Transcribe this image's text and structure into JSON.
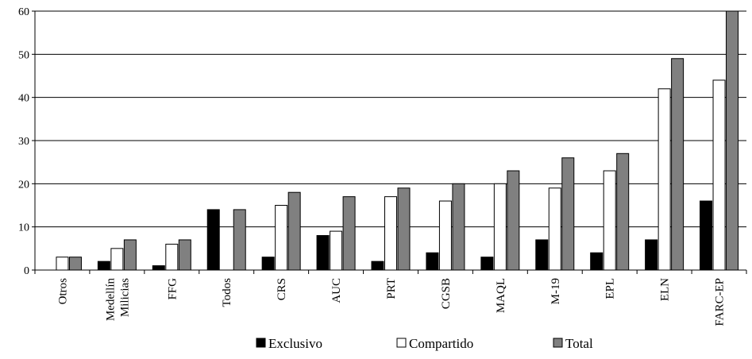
{
  "chart_data": {
    "type": "bar",
    "title": "",
    "xlabel": "",
    "ylabel": "",
    "ylim": [
      0,
      60
    ],
    "yticks": [
      0,
      10,
      20,
      30,
      40,
      50,
      60
    ],
    "grid": true,
    "legend_position": "bottom",
    "categories": [
      [
        "Otros"
      ],
      [
        "Milicias",
        "Medellín"
      ],
      [
        "FFG"
      ],
      [
        "Todos"
      ],
      [
        "CRS"
      ],
      [
        "AUC"
      ],
      [
        "PRT"
      ],
      [
        "CGSB"
      ],
      [
        "MAQL"
      ],
      [
        "M-19"
      ],
      [
        "EPL"
      ],
      [
        "ELN"
      ],
      [
        "FARC-EP"
      ]
    ],
    "series": [
      {
        "name": "Exclusivo",
        "color": "#000000",
        "values": [
          0,
          2,
          1,
          14,
          3,
          8,
          2,
          4,
          3,
          7,
          4,
          7,
          16
        ]
      },
      {
        "name": "Compartido",
        "color": "#ffffff",
        "values": [
          3,
          5,
          6,
          0,
          15,
          9,
          17,
          16,
          20,
          19,
          23,
          42,
          44
        ]
      },
      {
        "name": "Total",
        "color": "#808080",
        "values": [
          3,
          7,
          7,
          14,
          18,
          17,
          19,
          20,
          23,
          26,
          27,
          49,
          60
        ]
      }
    ]
  }
}
